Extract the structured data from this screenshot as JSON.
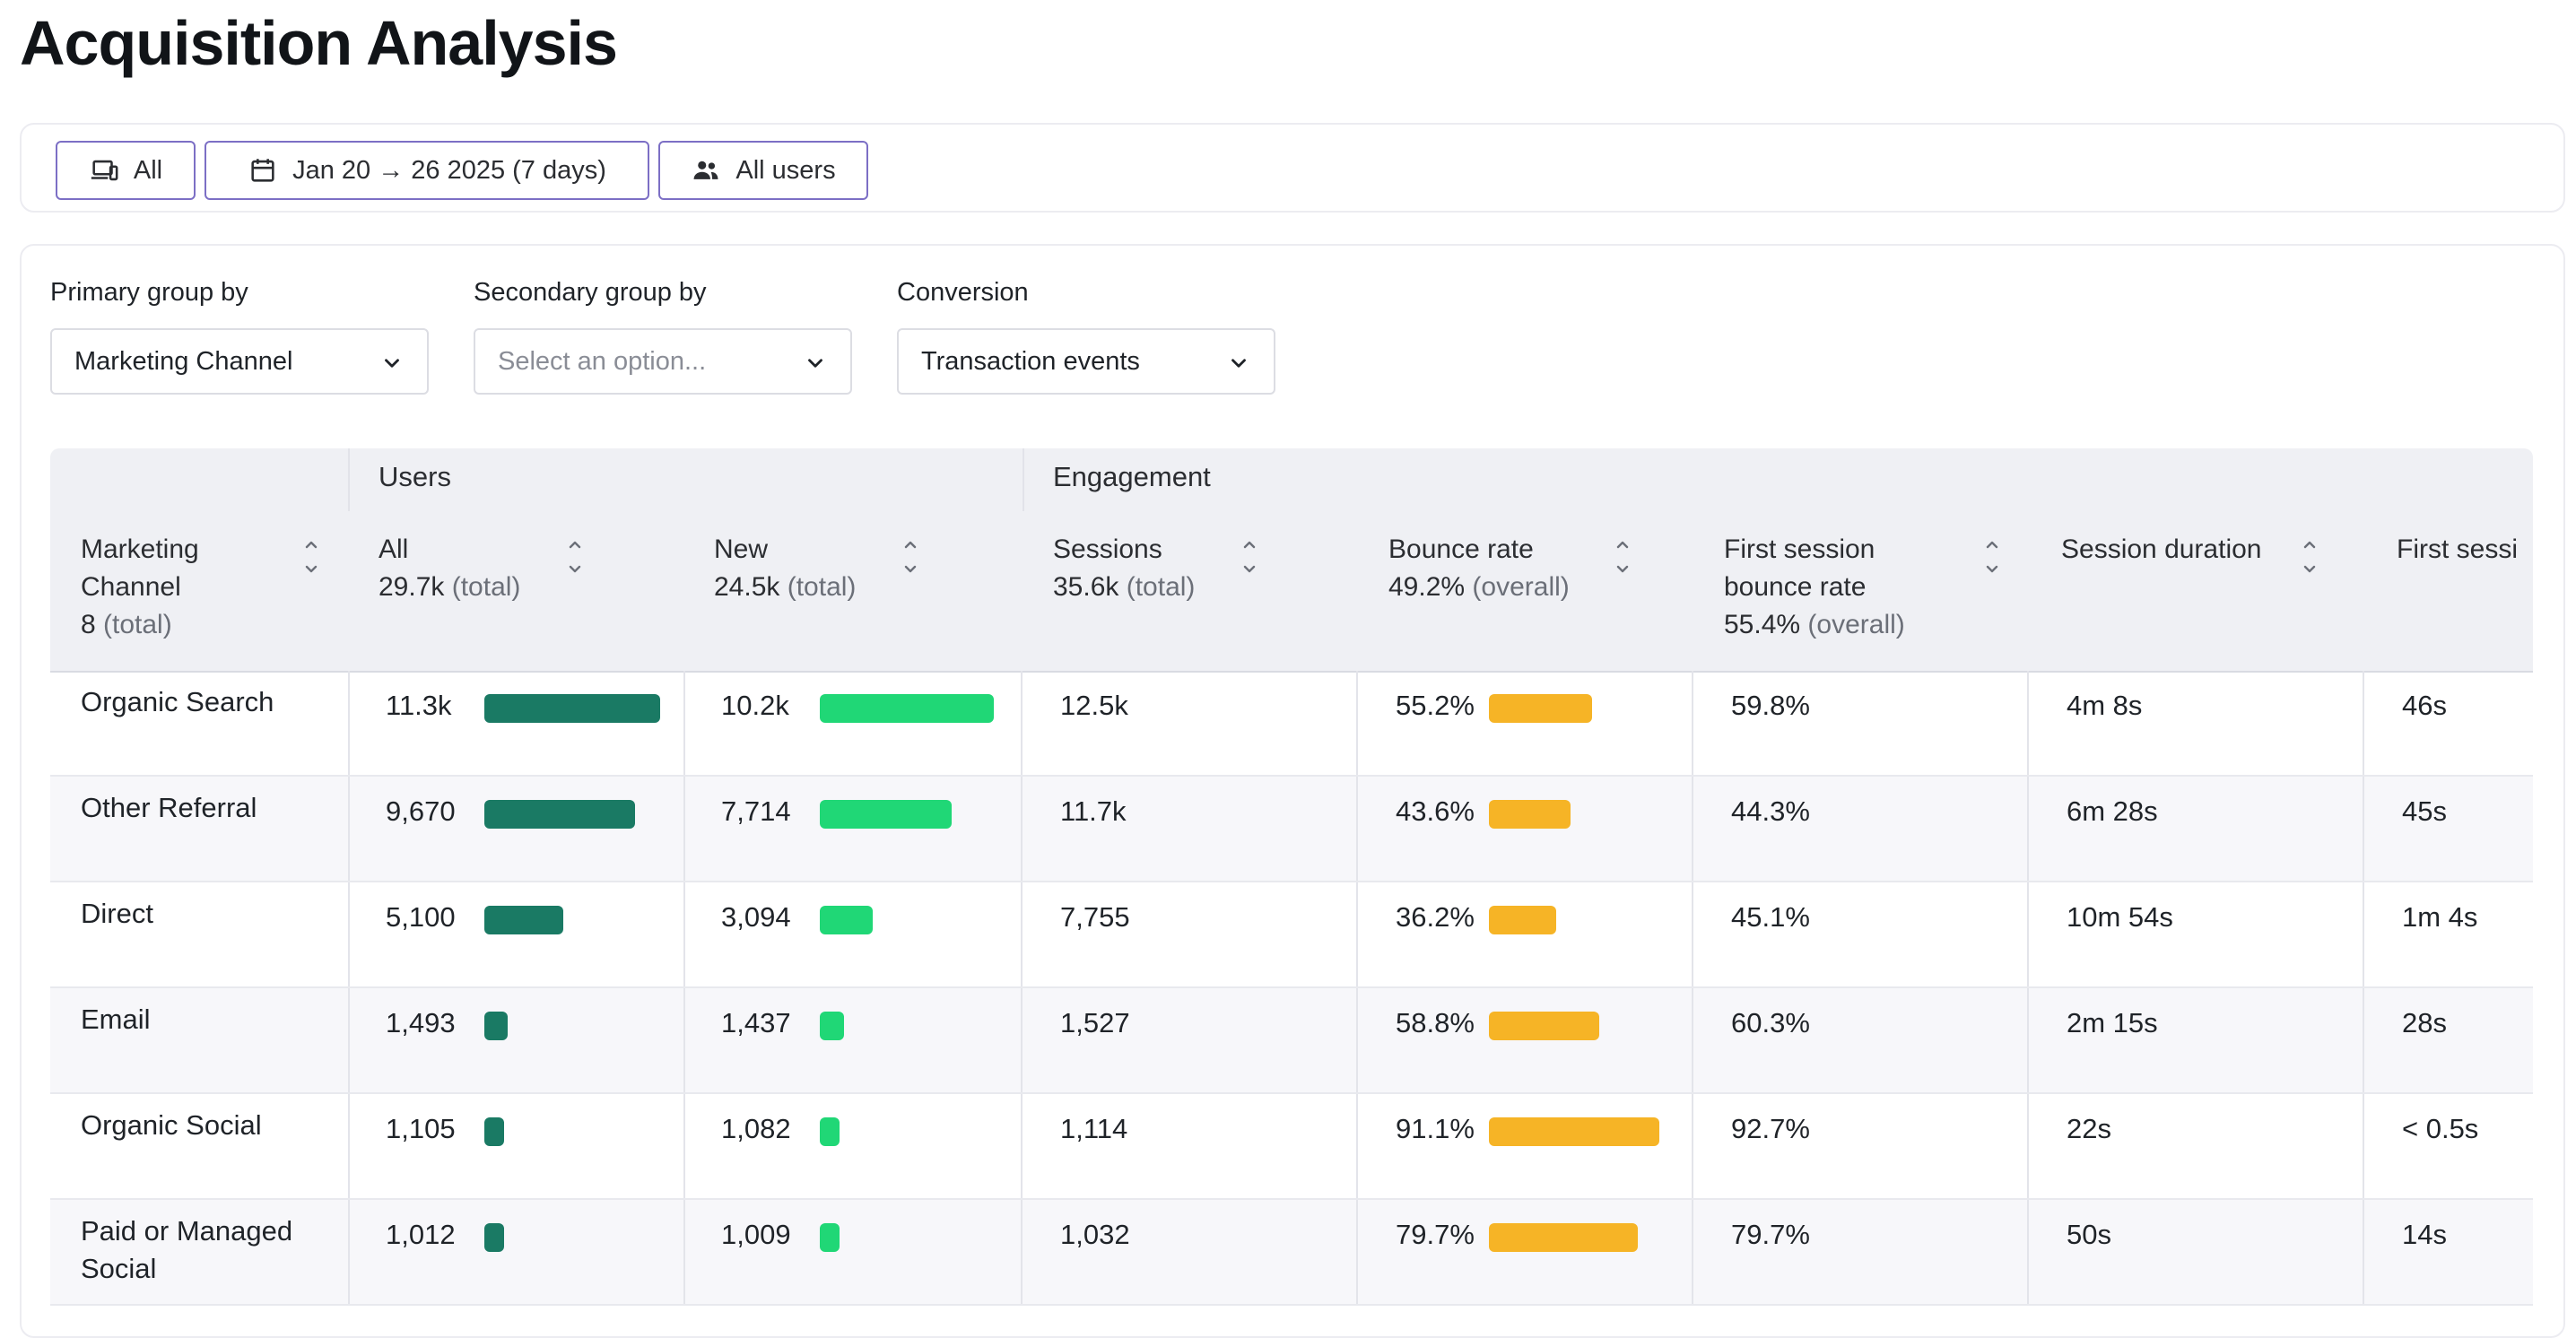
{
  "page": {
    "title": "Acquisition Analysis"
  },
  "filters": {
    "device": {
      "label": "All",
      "icon": "devices-icon"
    },
    "date": {
      "label": "Jan 20 → 26 2025 (7 days)",
      "icon": "calendar-icon"
    },
    "users": {
      "label": "All users",
      "icon": "users-icon"
    }
  },
  "controls": {
    "primary": {
      "label": "Primary group by",
      "value": "Marketing Channel"
    },
    "secondary": {
      "label": "Secondary group by",
      "placeholder": "Select an option..."
    },
    "conversion": {
      "label": "Conversion",
      "value": "Transaction events"
    }
  },
  "table": {
    "groups": {
      "users": "Users",
      "engagement": "Engagement"
    },
    "columns": {
      "channel": {
        "label_line1": "Marketing",
        "label_line2": "Channel",
        "total_value": "8",
        "total_suffix": "(total)"
      },
      "all": {
        "label": "All",
        "total_value": "29.7k",
        "total_suffix": "(total)"
      },
      "new": {
        "label": "New",
        "total_value": "24.5k",
        "total_suffix": "(total)"
      },
      "sessions": {
        "label": "Sessions",
        "total_value": "35.6k",
        "total_suffix": "(total)"
      },
      "bounce": {
        "label": "Bounce rate",
        "total_value": "49.2%",
        "total_suffix": "(overall)"
      },
      "first_bounce": {
        "label_line1": "First session",
        "label_line2": "bounce rate",
        "total_value": "55.4%",
        "total_suffix": "(overall)"
      },
      "duration": {
        "label": "Session duration"
      },
      "first_session": {
        "label": "First sessi"
      }
    },
    "rows": [
      {
        "channel": "Organic Search",
        "all": "11.3k",
        "all_n": 11300,
        "new": "10.2k",
        "new_n": 10200,
        "sessions": "12.5k",
        "bounce": "55.2%",
        "bounce_n": 55.2,
        "first_bounce": "59.8%",
        "duration": "4m 8s",
        "first_session": "46s"
      },
      {
        "channel": "Other Referral",
        "all": "9,670",
        "all_n": 9670,
        "new": "7,714",
        "new_n": 7714,
        "sessions": "11.7k",
        "bounce": "43.6%",
        "bounce_n": 43.6,
        "first_bounce": "44.3%",
        "duration": "6m 28s",
        "first_session": "45s"
      },
      {
        "channel": "Direct",
        "all": "5,100",
        "all_n": 5100,
        "new": "3,094",
        "new_n": 3094,
        "sessions": "7,755",
        "bounce": "36.2%",
        "bounce_n": 36.2,
        "first_bounce": "45.1%",
        "duration": "10m 54s",
        "first_session": "1m 4s"
      },
      {
        "channel": "Email",
        "all": "1,493",
        "all_n": 1493,
        "new": "1,437",
        "new_n": 1437,
        "sessions": "1,527",
        "bounce": "58.8%",
        "bounce_n": 58.8,
        "first_bounce": "60.3%",
        "duration": "2m 15s",
        "first_session": "28s"
      },
      {
        "channel": "Organic Social",
        "all": "1,105",
        "all_n": 1105,
        "new": "1,082",
        "new_n": 1082,
        "sessions": "1,114",
        "bounce": "91.1%",
        "bounce_n": 91.1,
        "first_bounce": "92.7%",
        "duration": "22s",
        "first_session": "< 0.5s"
      },
      {
        "channel": "Paid or Managed Social",
        "channel_line1": "Paid or Managed",
        "channel_line2": "Social",
        "all": "1,012",
        "all_n": 1012,
        "new": "1,009",
        "new_n": 1009,
        "sessions": "1,032",
        "bounce": "79.7%",
        "bounce_n": 79.7,
        "first_bounce": "79.7%",
        "duration": "50s",
        "first_session": "14s"
      }
    ]
  },
  "colors": {
    "users_all_bar": "#1a7a64",
    "users_new_bar": "#20d776",
    "bounce_bar": "#f6b426",
    "filter_border": "#7c6fc5"
  }
}
